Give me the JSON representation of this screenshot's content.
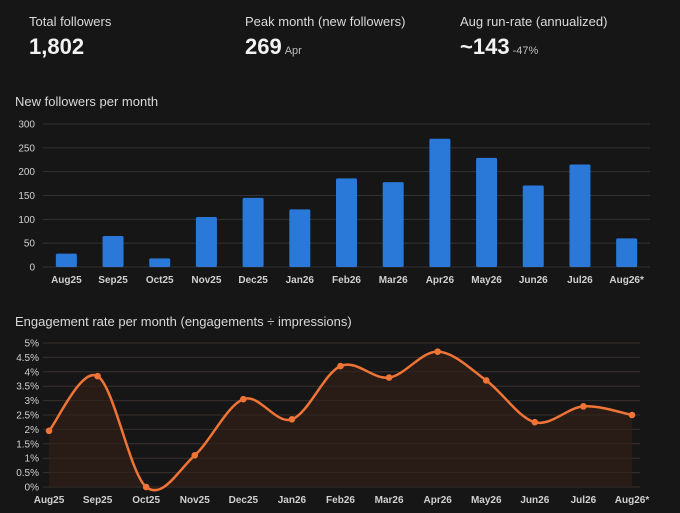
{
  "kpis": [
    {
      "label": "Total followers",
      "value": "1,802",
      "sub": ""
    },
    {
      "label": "Peak month (new followers)",
      "value": "269",
      "sub": "Apr"
    },
    {
      "label": "Aug run-rate (annualized)",
      "value": "~143",
      "sub": "-47%"
    }
  ],
  "colors": {
    "background": "#161616",
    "bar": "#2a78d8",
    "line": "#f07436",
    "area": "#2a1b16",
    "grid": "#333333"
  },
  "chart_data": [
    {
      "type": "bar",
      "title": "New followers per month",
      "categories": [
        "Aug25",
        "Sep25",
        "Oct25",
        "Nov25",
        "Dec25",
        "Jan26",
        "Feb26",
        "Mar26",
        "Apr26",
        "May26",
        "Jun26",
        "Jul26",
        "Aug26*"
      ],
      "values": [
        28,
        65,
        18,
        105,
        145,
        121,
        186,
        178,
        269,
        229,
        171,
        215,
        60
      ],
      "ylim": [
        0,
        300
      ],
      "yticks": [
        "0",
        "50",
        "100",
        "150",
        "200",
        "250",
        "300"
      ],
      "grid": true
    },
    {
      "type": "line",
      "title": "Engagement rate per month (engagements ÷ impressions)",
      "categories": [
        "Aug25",
        "Sep25",
        "Oct25",
        "Nov25",
        "Dec25",
        "Jan26",
        "Feb26",
        "Mar26",
        "Apr26",
        "May26",
        "Jun26",
        "Jul26",
        "Aug26*"
      ],
      "values": [
        1.95,
        3.85,
        0.0,
        1.1,
        3.05,
        2.35,
        4.2,
        3.8,
        4.7,
        3.7,
        2.25,
        2.8,
        2.5
      ],
      "ylim": [
        0,
        5
      ],
      "yticks": [
        "0%",
        "0.5%",
        "1%",
        "1.5%",
        "2%",
        "2.5%",
        "3%",
        "3.5%",
        "4%",
        "4.5%",
        "5%"
      ],
      "grid": true,
      "area": true
    }
  ]
}
